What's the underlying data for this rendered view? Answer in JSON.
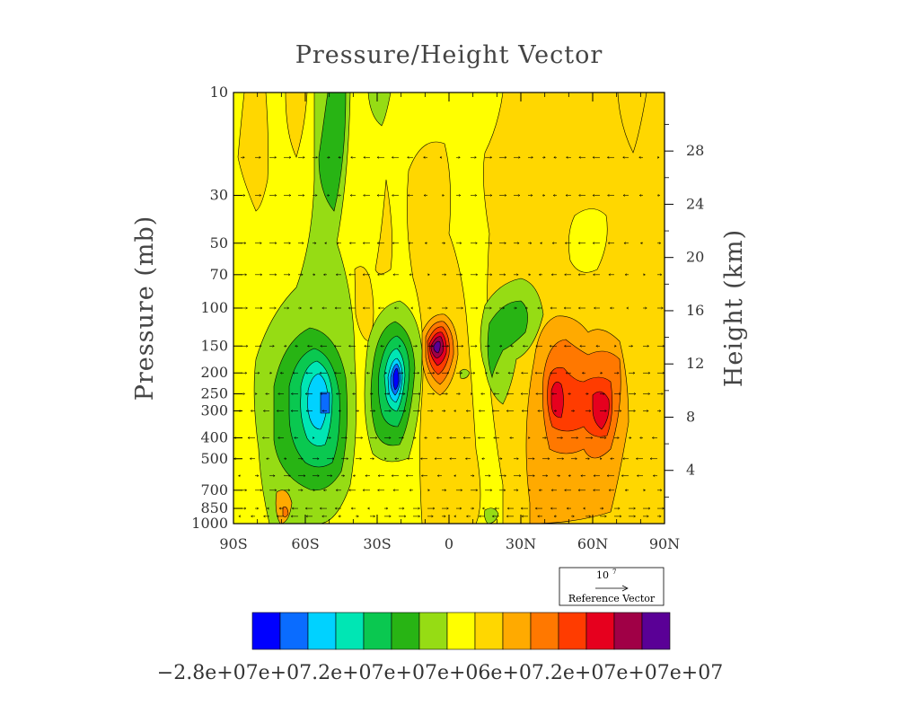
{
  "chart_data": {
    "type": "contour",
    "title": "Pressure/Height Vector",
    "xlabel": "",
    "ylabel": "Pressure (mb)",
    "ylabel_right": "Height (km)",
    "x_ticks": [
      "90S",
      "60S",
      "30S",
      "0",
      "30N",
      "60N",
      "90N"
    ],
    "x_tick_values": [
      -90,
      -60,
      -30,
      0,
      30,
      60,
      90
    ],
    "y_ticks": [
      "10",
      "30",
      "50",
      "70",
      "100",
      "150",
      "200",
      "250",
      "300",
      "400",
      "500",
      "700",
      "850",
      "1000"
    ],
    "y_tick_values": [
      10,
      30,
      50,
      70,
      100,
      150,
      200,
      250,
      300,
      400,
      500,
      700,
      850,
      1000
    ],
    "y_scale": "log",
    "ylim": [
      1000,
      10
    ],
    "xlim": [
      -90,
      90
    ],
    "right_y_ticks": [
      "4",
      "8",
      "12",
      "16",
      "20",
      "24",
      "28"
    ],
    "right_y_tick_values": [
      4,
      8,
      12,
      16,
      20,
      24,
      28
    ],
    "reference_vector": {
      "magnitude": "10",
      "exponent": "7",
      "label": "Reference Vector"
    },
    "colorbar_label_text": "−2.8e+07e+07.2e+07e+07e+06e+07.2e+07e+07e+07",
    "colorbar_colors": [
      "#0000ff",
      "#0a6cff",
      "#00d2ff",
      "#00e6b4",
      "#0ac850",
      "#28b414",
      "#96dc14",
      "#ffff00",
      "#ffd700",
      "#ffaa00",
      "#ff7800",
      "#ff3c00",
      "#e6001e",
      "#a00046",
      "#5a0096"
    ],
    "cells": [
      {
        "lat": -50,
        "p": 260,
        "value": -26000000.0,
        "note": "negative core"
      },
      {
        "lat": -22,
        "p": 220,
        "value": -24000000.0,
        "note": "negative core"
      },
      {
        "lat": -5,
        "p": 160,
        "value": 26000000.0,
        "note": "positive core"
      },
      {
        "lat": 48,
        "p": 260,
        "value": 22000000.0,
        "note": "positive core"
      },
      {
        "lat": 63,
        "p": 290,
        "value": 22000000.0,
        "note": "positive core"
      },
      {
        "lat": 17,
        "p": 120,
        "value": -12000000.0,
        "note": "negative lobe"
      }
    ]
  }
}
